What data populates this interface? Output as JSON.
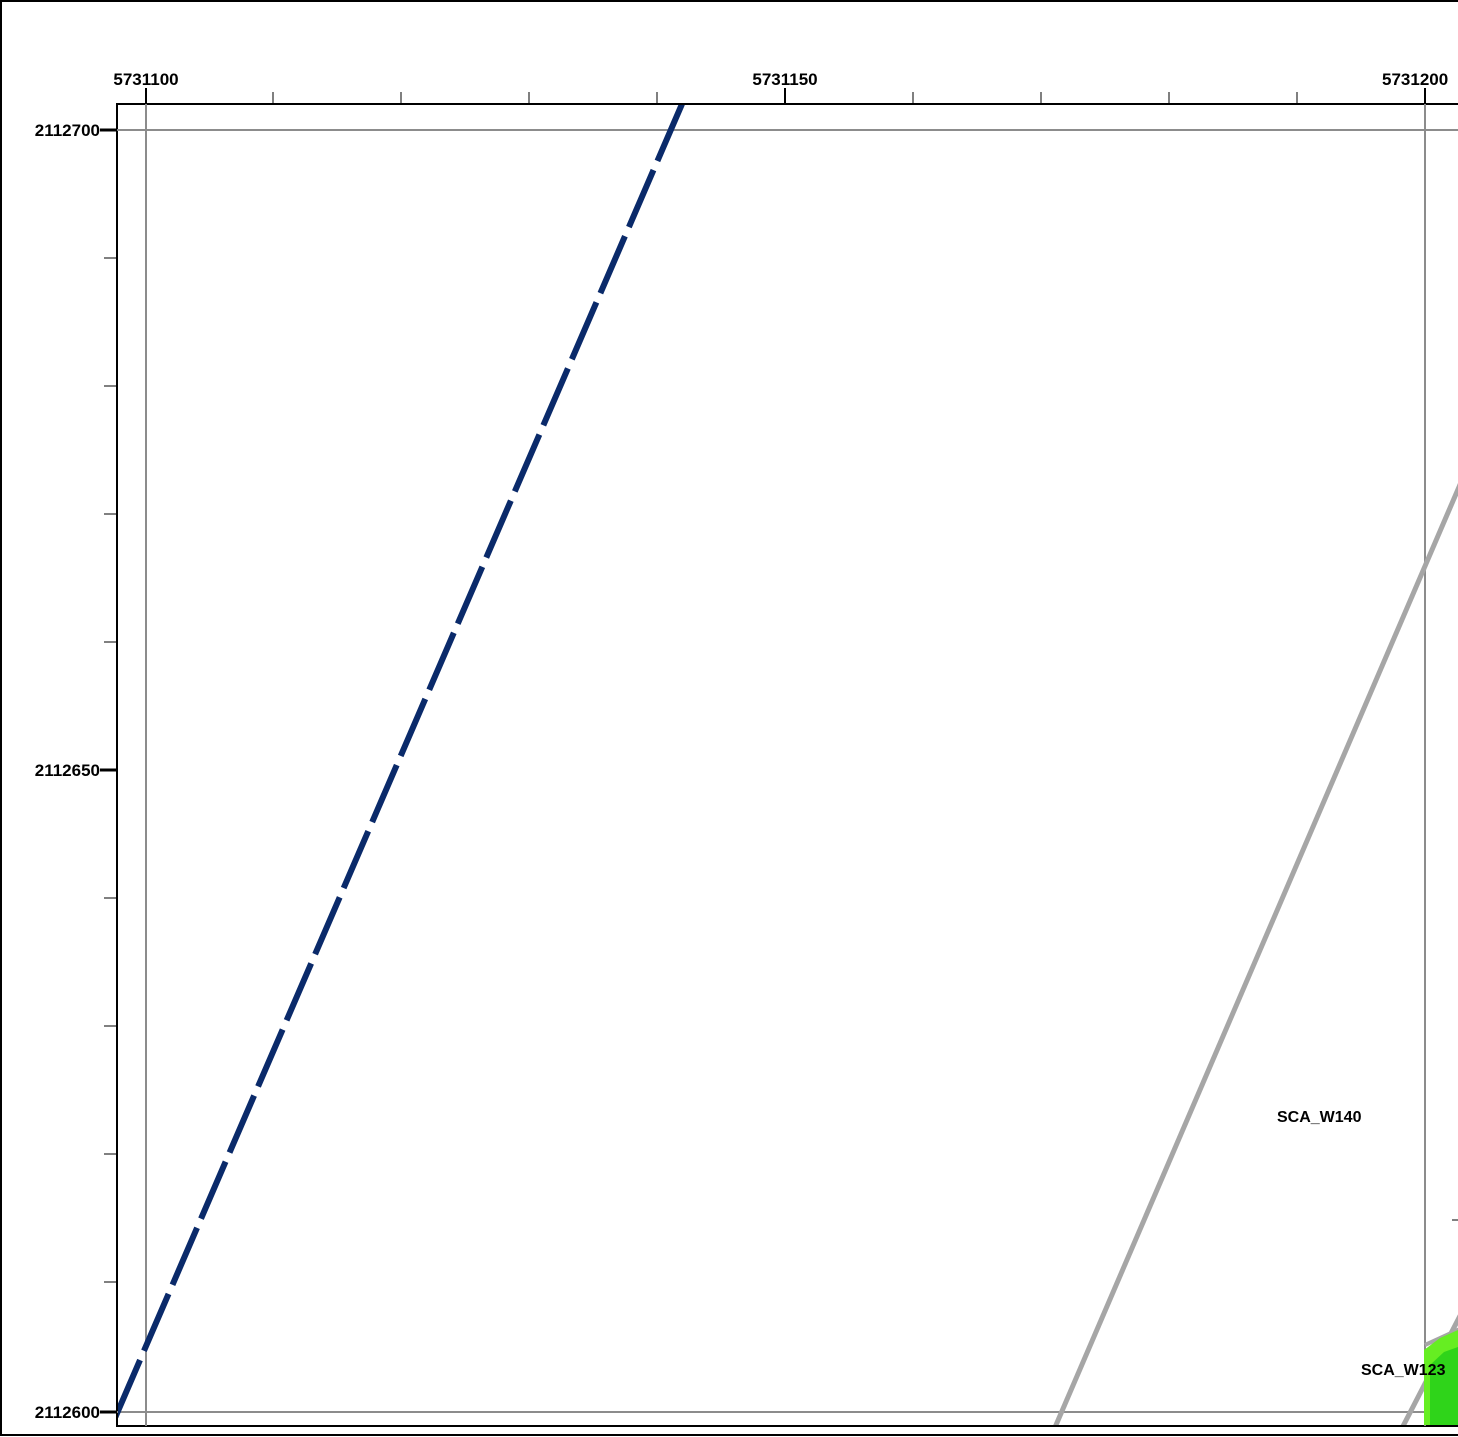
{
  "map": {
    "x_axis_labels": [
      "5731100",
      "5731150",
      "5731200"
    ],
    "y_axis_labels": [
      "2112700",
      "2112650",
      "2112600"
    ],
    "features": [
      {
        "id": "SCA_W140",
        "label": "SCA_W140",
        "style": "grey-line"
      },
      {
        "id": "SCA_W123",
        "label": "SCA_W123",
        "style": "grey-line"
      }
    ],
    "colors": {
      "frame": "#000000",
      "grid": "#8c8c8c",
      "dashed_line": "#0a2a6a",
      "feature_line": "#a6a6a6",
      "green_fill": "#66ee22"
    }
  }
}
